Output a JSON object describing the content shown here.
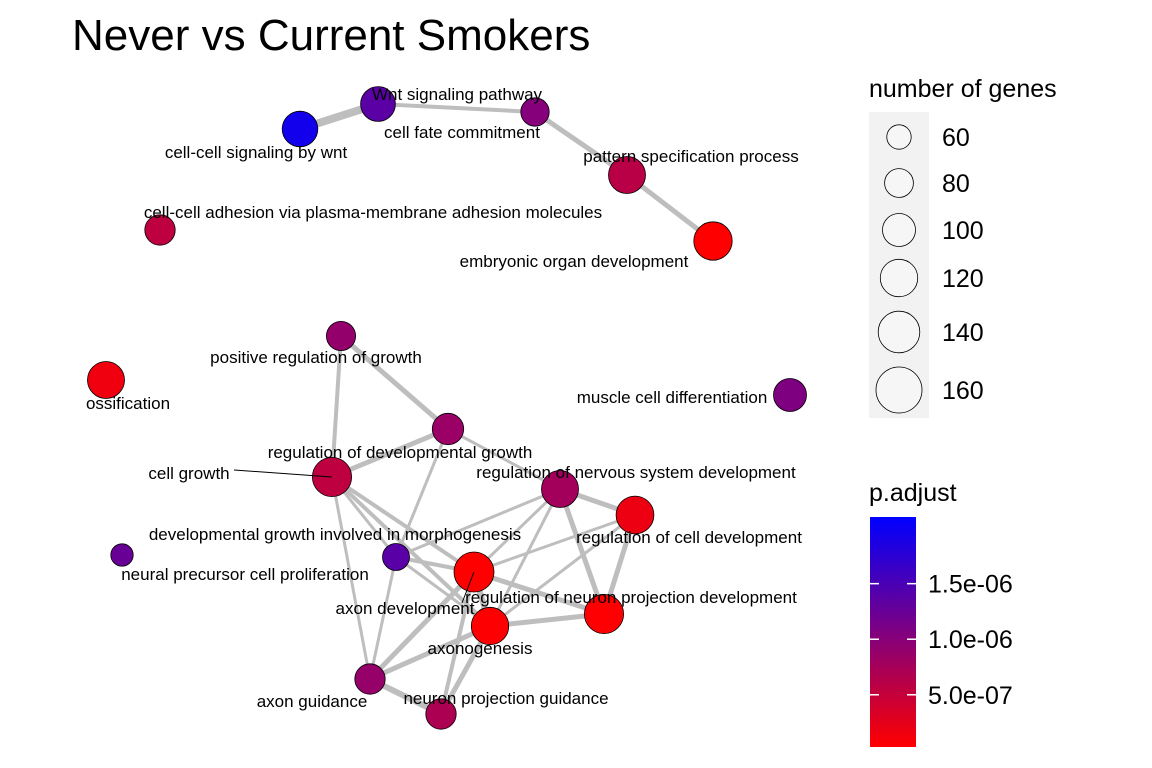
{
  "chart_data": {
    "type": "network",
    "title": "Never vs Current Smokers",
    "colors": {
      "low": "#ff0000",
      "high": "#0000ff",
      "edge": "#bebebe",
      "legend_panel": "#f2f2f2"
    },
    "nodes": [
      {
        "id": "wnt_pathway",
        "label": "Wnt signaling pathway",
        "genes": 108,
        "p_adjust": 1.36e-06
      },
      {
        "id": "cell_fate",
        "label": "cell fate commitment",
        "genes": 78,
        "p_adjust": 1.02e-06
      },
      {
        "id": "cc_wnt",
        "label": "cell-cell signaling by wnt",
        "genes": 112,
        "p_adjust": 1.95e-06
      },
      {
        "id": "pattern_spec",
        "label": "pattern specification process",
        "genes": 118,
        "p_adjust": 6e-07
      },
      {
        "id": "embryonic_organ",
        "label": "embryonic organ development",
        "genes": 125,
        "p_adjust": 3e-08
      },
      {
        "id": "cc_adhesion",
        "label": "cell-cell adhesion via plasma-membrane adhesion molecules",
        "genes": 88,
        "p_adjust": 5.6e-07
      },
      {
        "id": "pos_reg_growth",
        "label": "positive regulation of growth",
        "genes": 82,
        "p_adjust": 9e-07
      },
      {
        "id": "ossification",
        "label": "ossification",
        "genes": 118,
        "p_adjust": 1.5e-07
      },
      {
        "id": "muscle_diff",
        "label": "muscle cell differentiation",
        "genes": 100,
        "p_adjust": 1.08e-06
      },
      {
        "id": "reg_dev_growth",
        "label": "regulation of developmental growth",
        "genes": 92,
        "p_adjust": 8.5e-07
      },
      {
        "id": "cell_growth",
        "label": "cell growth",
        "genes": 128,
        "p_adjust": 5.5e-07
      },
      {
        "id": "reg_ns_dev",
        "label": "regulation of nervous system development",
        "genes": 118,
        "p_adjust": 7.8e-07
      },
      {
        "id": "reg_cell_dev",
        "label": "regulation of cell development",
        "genes": 122,
        "p_adjust": 1.8e-07
      },
      {
        "id": "dev_growth_morph",
        "label": "developmental growth involved in morphogenesis",
        "genes": 72,
        "p_adjust": 1.38e-06
      },
      {
        "id": "neural_prec",
        "label": "neural precursor cell proliferation",
        "genes": 50,
        "p_adjust": 1.25e-06
      },
      {
        "id": "axon_dev",
        "label": "axon development",
        "genes": 132,
        "p_adjust": 2e-08
      },
      {
        "id": "reg_neuron_proj",
        "label": "regulation of neuron projection development",
        "genes": 128,
        "p_adjust": 4e-08
      },
      {
        "id": "axonogenesis",
        "label": "axonogenesis",
        "genes": 120,
        "p_adjust": 5e-08
      },
      {
        "id": "axon_guidance",
        "label": "axon guidance",
        "genes": 88,
        "p_adjust": 8.8e-07
      },
      {
        "id": "neuron_proj_guidance",
        "label": "neuron projection guidance",
        "genes": 88,
        "p_adjust": 7e-07
      }
    ],
    "edges": [
      [
        "cc_wnt",
        "wnt_pathway",
        8
      ],
      [
        "wnt_pathway",
        "cell_fate",
        4
      ],
      [
        "cell_fate",
        "pattern_spec",
        5
      ],
      [
        "pattern_spec",
        "embryonic_organ",
        5
      ],
      [
        "pos_reg_growth",
        "reg_dev_growth",
        5
      ],
      [
        "pos_reg_growth",
        "cell_growth",
        4
      ],
      [
        "reg_dev_growth",
        "cell_growth",
        5
      ],
      [
        "reg_dev_growth",
        "reg_ns_dev",
        3
      ],
      [
        "reg_dev_growth",
        "dev_growth_morph",
        3
      ],
      [
        "cell_growth",
        "dev_growth_morph",
        3
      ],
      [
        "cell_growth",
        "axon_dev",
        4
      ],
      [
        "cell_growth",
        "axonogenesis",
        4
      ],
      [
        "cell_growth",
        "axon_guidance",
        3
      ],
      [
        "reg_ns_dev",
        "reg_cell_dev",
        5
      ],
      [
        "reg_ns_dev",
        "reg_neuron_proj",
        5
      ],
      [
        "reg_ns_dev",
        "axon_dev",
        3
      ],
      [
        "reg_ns_dev",
        "axonogenesis",
        3
      ],
      [
        "reg_ns_dev",
        "dev_growth_morph",
        3
      ],
      [
        "reg_cell_dev",
        "reg_neuron_proj",
        5
      ],
      [
        "reg_cell_dev",
        "axon_dev",
        3
      ],
      [
        "reg_cell_dev",
        "axonogenesis",
        3
      ],
      [
        "reg_neuron_proj",
        "axon_dev",
        5
      ],
      [
        "reg_neuron_proj",
        "axonogenesis",
        5
      ],
      [
        "dev_growth_morph",
        "axon_dev",
        4
      ],
      [
        "dev_growth_morph",
        "axonogenesis",
        3
      ],
      [
        "dev_growth_morph",
        "axon_guidance",
        3
      ],
      [
        "axon_dev",
        "axonogenesis",
        6
      ],
      [
        "axon_dev",
        "axon_guidance",
        5
      ],
      [
        "axon_dev",
        "neuron_proj_guidance",
        4
      ],
      [
        "axonogenesis",
        "axon_guidance",
        5
      ],
      [
        "axonogenesis",
        "neuron_proj_guidance",
        5
      ],
      [
        "axon_guidance",
        "neuron_proj_guidance",
        6
      ]
    ],
    "legend_size": {
      "title": "number of genes",
      "entries": [
        {
          "label": "60",
          "genes": 60
        },
        {
          "label": "80",
          "genes": 80
        },
        {
          "label": "100",
          "genes": 100
        },
        {
          "label": "120",
          "genes": 120
        },
        {
          "label": "140",
          "genes": 140
        },
        {
          "label": "160",
          "genes": 160
        }
      ]
    },
    "legend_color": {
      "title": "p.adjust",
      "range": [
        3e-08,
        2.1e-06
      ],
      "ticks": [
        {
          "label": "1.5e-06",
          "value": 1.5e-06
        },
        {
          "label": "1.0e-06",
          "value": 1e-06
        },
        {
          "label": "5.0e-07",
          "value": 5e-07
        }
      ]
    }
  }
}
